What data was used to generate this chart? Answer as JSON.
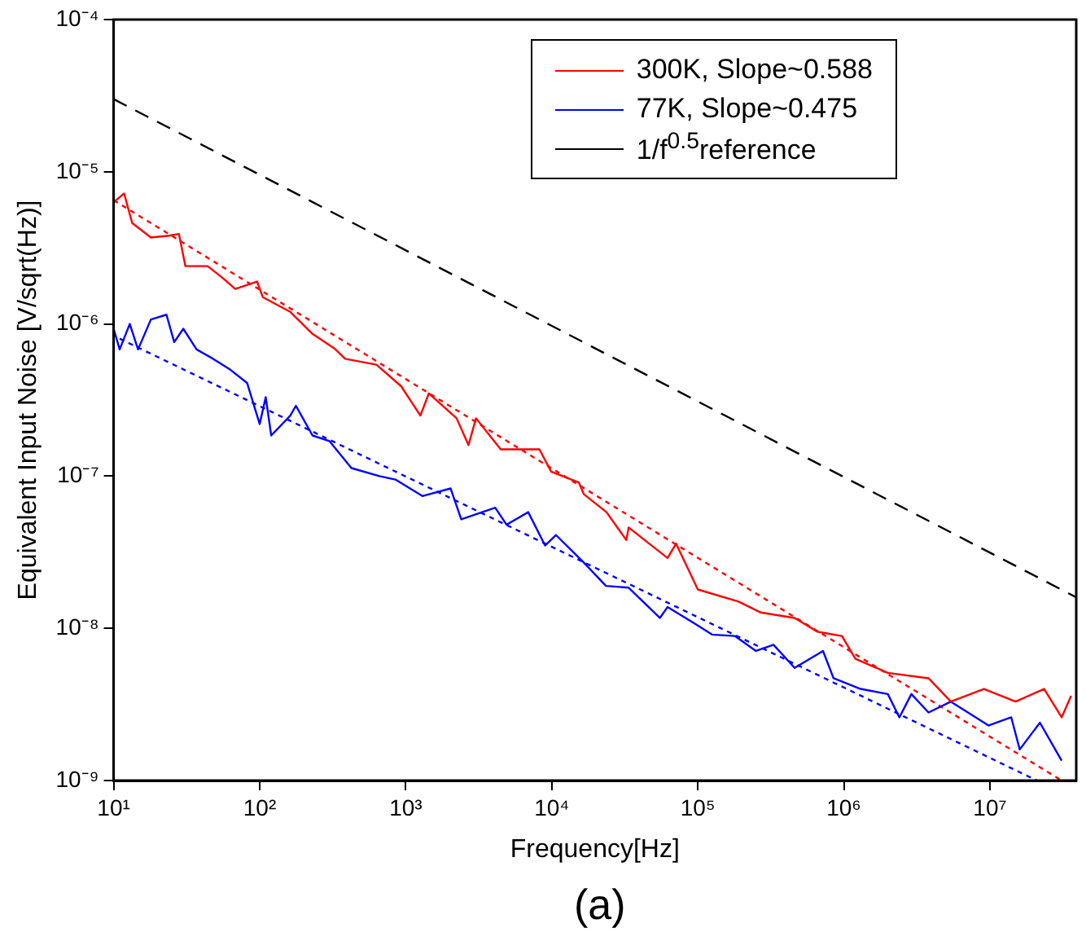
{
  "chart_data": {
    "type": "line",
    "xlabel": "Frequency[Hz]",
    "ylabel": "Equivalent Input Noise [V/sqrt(Hz)]",
    "annotations": [
      "(a)"
    ],
    "log": "xy",
    "xlim": [
      10,
      39000000
    ],
    "ylim": [
      1e-09,
      0.0001
    ],
    "xticks": [
      {
        "value": 10,
        "label": "10¹"
      },
      {
        "value": 100,
        "label": "10²"
      },
      {
        "value": 1000,
        "label": "10³"
      },
      {
        "value": 10000,
        "label": "10⁴"
      },
      {
        "value": 100000,
        "label": "10⁵"
      },
      {
        "value": 1000000,
        "label": "10⁶"
      },
      {
        "value": 10000000,
        "label": "10⁷"
      }
    ],
    "yticks": [
      {
        "value": 1e-09,
        "label": "10⁻⁹"
      },
      {
        "value": 1e-08,
        "label": "10⁻⁸"
      },
      {
        "value": 1e-07,
        "label": "10⁻⁷"
      },
      {
        "value": 1e-06,
        "label": "10⁻⁶"
      },
      {
        "value": 1e-05,
        "label": "10⁻⁵"
      },
      {
        "value": 0.0001,
        "label": "10⁻⁴"
      }
    ],
    "grid": false,
    "legend": "top right",
    "marker": "none",
    "series": [
      {
        "name": "300K, Slope~0.588",
        "color": "#ff0000",
        "line_style": "solid",
        "x": [
          10,
          11.8,
          13.4,
          18,
          24,
          28,
          31,
          44,
          56,
          68,
          96,
          105,
          162,
          230,
          325,
          385,
          630,
          930,
          1260,
          1440,
          2230,
          2690,
          3030,
          4470,
          8230,
          9900,
          15300,
          16600,
          23700,
          32400,
          33600,
          62000,
          71000,
          100000,
          190000,
          270000,
          460000,
          660000,
          970000,
          1200000,
          2000000,
          3800000,
          5400000,
          9100000,
          15000000,
          23500000,
          31000000,
          36000000
        ],
        "values": [
          6.3e-06,
          7.2e-06,
          4.6e-06,
          3.7e-06,
          3.8e-06,
          3.9e-06,
          2.4e-06,
          2.4e-06,
          2e-06,
          1.7e-06,
          1.9e-06,
          1.5e-06,
          1.2e-06,
          8.6e-07,
          6.9e-07,
          5.9e-07,
          5.4e-07,
          3.9e-07,
          2.5e-07,
          3.5e-07,
          2.4e-07,
          1.6e-07,
          2.4e-07,
          1.5e-07,
          1.5e-07,
          1.07e-07,
          9.1e-08,
          7.6e-08,
          5.8e-08,
          3.8e-08,
          4.6e-08,
          2.9e-08,
          3.6e-08,
          1.8e-08,
          1.5e-08,
          1.27e-08,
          1.17e-08,
          9.5e-09,
          8.9e-09,
          6.3e-09,
          5.1e-09,
          4.7e-09,
          3.3e-09,
          4e-09,
          3.3e-09,
          4e-09,
          2.6e-09,
          3.6e-09
        ]
      },
      {
        "name": "77K, Slope~0.475",
        "color": "#0000ff",
        "line_style": "solid",
        "x": [
          10,
          11,
          12.9,
          14.7,
          18,
          23,
          26,
          30,
          37,
          48,
          63,
          82,
          100,
          110,
          120,
          162,
          177,
          230,
          300,
          425,
          660,
          850,
          1300,
          2030,
          2400,
          4100,
          4900,
          6900,
          9000,
          10700,
          16600,
          23500,
          33600,
          55000,
          62000,
          96000,
          125000,
          180000,
          250000,
          330000,
          460000,
          720000,
          850000,
          1300000,
          2000000,
          2400000,
          2900000,
          3800000,
          5400000,
          9800000,
          14000000,
          16000000,
          22000000,
          31000000
        ],
        "values": [
          9.3e-07,
          6.8e-07,
          1e-06,
          6.8e-07,
          1.07e-06,
          1.15e-06,
          7.6e-07,
          9.3e-07,
          6.8e-07,
          5.9e-07,
          5e-07,
          4.1e-07,
          2.2e-07,
          3.3e-07,
          1.85e-07,
          2.5e-07,
          2.9e-07,
          1.85e-07,
          1.7e-07,
          1.13e-07,
          1e-07,
          9.5e-08,
          7.4e-08,
          8.3e-08,
          5.2e-08,
          6.2e-08,
          4.8e-08,
          5.8e-08,
          3.5e-08,
          4.1e-08,
          2.7e-08,
          1.9e-08,
          1.85e-08,
          1.17e-08,
          1.38e-08,
          1.07e-08,
          9.1e-09,
          8.9e-09,
          7.1e-09,
          7.8e-09,
          5.5e-09,
          7.1e-09,
          4.7e-09,
          4e-09,
          3.7e-09,
          2.6e-09,
          3.7e-09,
          2.8e-09,
          3.3e-09,
          2.3e-09,
          2.6e-09,
          1.6e-09,
          2.4e-09,
          1.35e-09
        ]
      },
      {
        "name": "1/f$^{0.5}$reference",
        "color": "#000000",
        "line_style": "dashed",
        "x": [
          10,
          39000000
        ],
        "values": [
          3e-05,
          1.6e-08
        ]
      },
      {
        "color": "#ff0000",
        "line_style": "dotted",
        "x": [
          10,
          31000000
        ],
        "values": [
          6.5e-06,
          1e-09
        ]
      },
      {
        "color": "#0000ff",
        "line_style": "dotted",
        "x": [
          11,
          21000000
        ],
        "values": [
          8e-07,
          1e-09
        ]
      }
    ]
  }
}
